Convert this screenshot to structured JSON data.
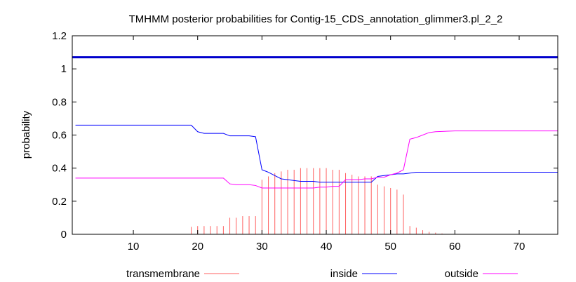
{
  "chart_data": {
    "type": "line",
    "title": "TMHMM posterior probabilities for Contig-15_CDS_annotation_glimmer3.pl_2_2",
    "xlabel": "",
    "ylabel": "probability",
    "xlim": [
      0.5,
      76
    ],
    "ylim": [
      0,
      1.2
    ],
    "xticks": [
      10,
      20,
      30,
      40,
      50,
      60,
      70
    ],
    "yticks": [
      0,
      0.2,
      0.4,
      0.6,
      0.8,
      1,
      1.2
    ],
    "ytick_labels": [
      "0",
      "0.2",
      "0.4",
      "0.6",
      "0.8",
      "1",
      "1.2"
    ],
    "grid": false,
    "legend_position": "bottom",
    "reference_line": {
      "y": 1.07,
      "color": "#0000cc"
    },
    "series": [
      {
        "name": "transmembrane",
        "color": "#ff6060",
        "style": "impulses",
        "x": [
          19,
          20,
          21,
          22,
          23,
          24,
          25,
          26,
          27,
          28,
          29,
          30,
          31,
          32,
          33,
          34,
          35,
          36,
          37,
          38,
          39,
          40,
          41,
          42,
          43,
          44,
          45,
          46,
          47,
          48,
          49,
          50,
          51,
          52,
          53,
          54,
          55,
          56,
          57,
          58
        ],
        "values": [
          0.045,
          0.05,
          0.05,
          0.05,
          0.05,
          0.05,
          0.1,
          0.1,
          0.11,
          0.11,
          0.11,
          0.33,
          0.35,
          0.37,
          0.38,
          0.39,
          0.39,
          0.4,
          0.4,
          0.4,
          0.4,
          0.4,
          0.39,
          0.39,
          0.37,
          0.36,
          0.35,
          0.35,
          0.35,
          0.3,
          0.29,
          0.28,
          0.27,
          0.24,
          0.05,
          0.04,
          0.025,
          0.015,
          0.01,
          0.005
        ]
      },
      {
        "name": "inside",
        "color": "#0000ff",
        "style": "line",
        "x": [
          1,
          15,
          19,
          20,
          21,
          22,
          23,
          24,
          25,
          26,
          27,
          28,
          29,
          30,
          31,
          32,
          33,
          34,
          35,
          36,
          37,
          38,
          39,
          40,
          41,
          42,
          43,
          44,
          45,
          46,
          47,
          48,
          49,
          50,
          51,
          52,
          53,
          54,
          55,
          56,
          57,
          60,
          65,
          70,
          76
        ],
        "values": [
          0.66,
          0.66,
          0.66,
          0.62,
          0.61,
          0.61,
          0.61,
          0.61,
          0.595,
          0.595,
          0.595,
          0.595,
          0.59,
          0.39,
          0.375,
          0.355,
          0.335,
          0.33,
          0.325,
          0.32,
          0.32,
          0.32,
          0.315,
          0.315,
          0.315,
          0.315,
          0.315,
          0.315,
          0.315,
          0.315,
          0.315,
          0.35,
          0.355,
          0.36,
          0.365,
          0.365,
          0.37,
          0.375,
          0.375,
          0.375,
          0.375,
          0.375,
          0.375,
          0.375,
          0.375
        ]
      },
      {
        "name": "outside",
        "color": "#ff00ff",
        "style": "line",
        "x": [
          1,
          15,
          19,
          20,
          21,
          22,
          23,
          24,
          25,
          26,
          27,
          28,
          29,
          30,
          31,
          32,
          33,
          34,
          35,
          36,
          37,
          38,
          39,
          40,
          41,
          42,
          43,
          44,
          45,
          46,
          47,
          48,
          49,
          50,
          51,
          52,
          53,
          54,
          55,
          56,
          57,
          60,
          65,
          70,
          76
        ],
        "values": [
          0.34,
          0.34,
          0.34,
          0.34,
          0.34,
          0.34,
          0.34,
          0.34,
          0.305,
          0.3,
          0.3,
          0.3,
          0.295,
          0.28,
          0.28,
          0.28,
          0.28,
          0.28,
          0.28,
          0.28,
          0.28,
          0.28,
          0.285,
          0.285,
          0.29,
          0.29,
          0.33,
          0.33,
          0.33,
          0.335,
          0.335,
          0.345,
          0.345,
          0.36,
          0.37,
          0.39,
          0.575,
          0.585,
          0.6,
          0.615,
          0.62,
          0.625,
          0.625,
          0.625,
          0.625
        ]
      }
    ]
  }
}
